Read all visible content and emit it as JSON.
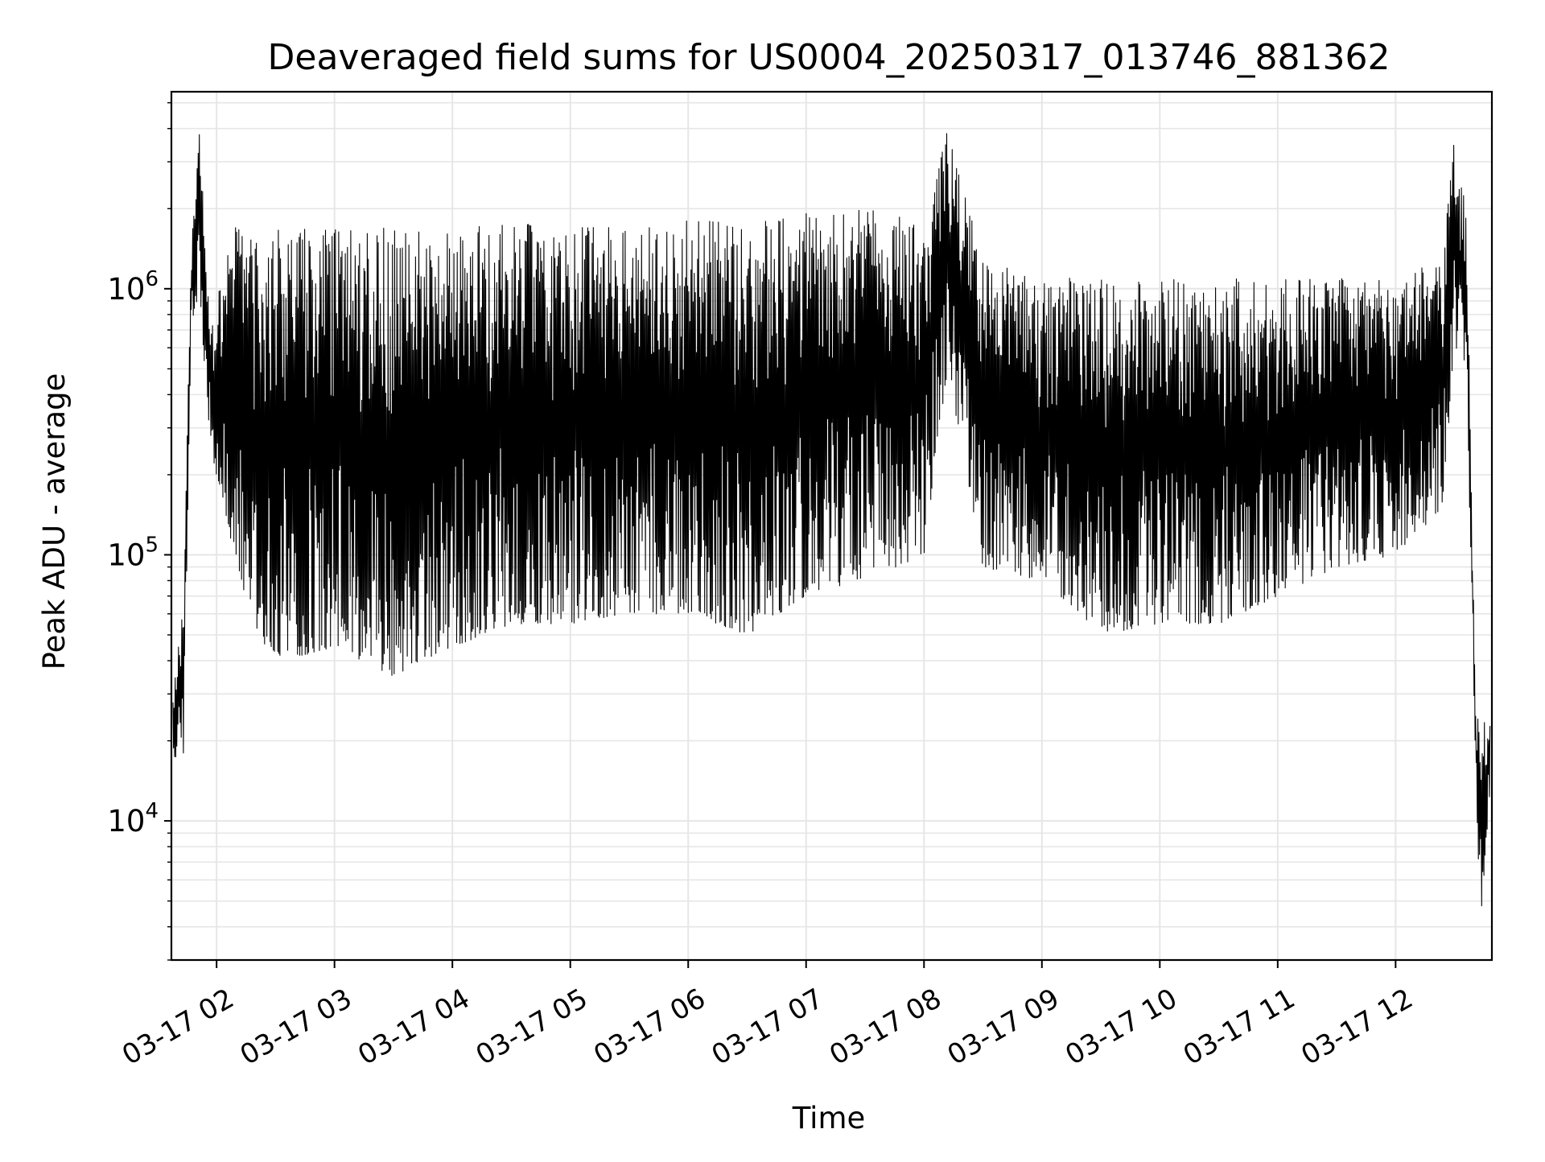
{
  "chart_data": {
    "type": "line",
    "title": "Deaveraged field sums for US0004_20250317_013746_881362",
    "xlabel": "Time",
    "ylabel": "Peak ADU - average",
    "yscale": "log",
    "xlim": [
      "03-17 01:37",
      "03-17 12:49"
    ],
    "ylim": [
      3000,
      5500000
    ],
    "grid": true,
    "line_color": "#000000",
    "grid_color": "#e6e6e6",
    "x_ticks": [
      {
        "value": "03-17 02",
        "hour": 2
      },
      {
        "value": "03-17 03",
        "hour": 3
      },
      {
        "value": "03-17 04",
        "hour": 4
      },
      {
        "value": "03-17 05",
        "hour": 5
      },
      {
        "value": "03-17 06",
        "hour": 6
      },
      {
        "value": "03-17 07",
        "hour": 7
      },
      {
        "value": "03-17 08",
        "hour": 8
      },
      {
        "value": "03-17 09",
        "hour": 9
      },
      {
        "value": "03-17 10",
        "hour": 10
      },
      {
        "value": "03-17 11",
        "hour": 11
      },
      {
        "value": "03-17 12",
        "hour": 12
      }
    ],
    "y_ticks": [
      {
        "value": 10000,
        "base": "10",
        "exp": "4"
      },
      {
        "value": 100000,
        "base": "10",
        "exp": "5"
      },
      {
        "value": 1000000,
        "base": "10",
        "exp": "6"
      }
    ],
    "series": [
      {
        "envelope": [
          {
            "hour": 1.63,
            "low": 17000,
            "high": 30000
          },
          {
            "hour": 1.72,
            "low": 18000,
            "high": 70000
          },
          {
            "hour": 1.78,
            "low": 600000,
            "high": 1300000
          },
          {
            "hour": 1.85,
            "low": 1000000,
            "high": 4200000
          },
          {
            "hour": 1.95,
            "low": 250000,
            "high": 700000
          },
          {
            "hour": 2.15,
            "low": 100000,
            "high": 1800000
          },
          {
            "hour": 2.3,
            "low": 50000,
            "high": 1700000
          },
          {
            "hour": 2.6,
            "low": 40000,
            "high": 1700000
          },
          {
            "hour": 3.0,
            "low": 45000,
            "high": 1700000
          },
          {
            "hour": 3.5,
            "low": 35000,
            "high": 1700000
          },
          {
            "hour": 4.0,
            "low": 45000,
            "high": 1700000
          },
          {
            "hour": 4.5,
            "low": 55000,
            "high": 1800000
          },
          {
            "hour": 5.0,
            "low": 55000,
            "high": 1700000
          },
          {
            "hour": 5.5,
            "low": 60000,
            "high": 1700000
          },
          {
            "hour": 6.0,
            "low": 60000,
            "high": 1800000
          },
          {
            "hour": 6.5,
            "low": 50000,
            "high": 1800000
          },
          {
            "hour": 7.0,
            "low": 70000,
            "high": 2000000
          },
          {
            "hour": 7.5,
            "low": 80000,
            "high": 2000000
          },
          {
            "hour": 8.0,
            "low": 100000,
            "high": 1800000
          },
          {
            "hour": 8.2,
            "low": 500000,
            "high": 4000000
          },
          {
            "hour": 8.5,
            "low": 90000,
            "high": 1300000
          },
          {
            "hour": 9.0,
            "low": 80000,
            "high": 1100000
          },
          {
            "hour": 9.5,
            "low": 50000,
            "high": 1100000
          },
          {
            "hour": 10.0,
            "low": 55000,
            "high": 1100000
          },
          {
            "hour": 10.5,
            "low": 55000,
            "high": 1100000
          },
          {
            "hour": 11.0,
            "low": 70000,
            "high": 1100000
          },
          {
            "hour": 11.5,
            "low": 90000,
            "high": 1100000
          },
          {
            "hour": 12.0,
            "low": 100000,
            "high": 1100000
          },
          {
            "hour": 12.4,
            "low": 150000,
            "high": 1300000
          },
          {
            "hour": 12.5,
            "low": 600000,
            "high": 3800000
          },
          {
            "hour": 12.6,
            "low": 500000,
            "high": 2000000
          },
          {
            "hour": 12.68,
            "low": 15000,
            "high": 25000
          },
          {
            "hour": 12.72,
            "low": 4000,
            "high": 25000
          },
          {
            "hour": 12.8,
            "low": 13000,
            "high": 24000
          }
        ]
      }
    ]
  }
}
